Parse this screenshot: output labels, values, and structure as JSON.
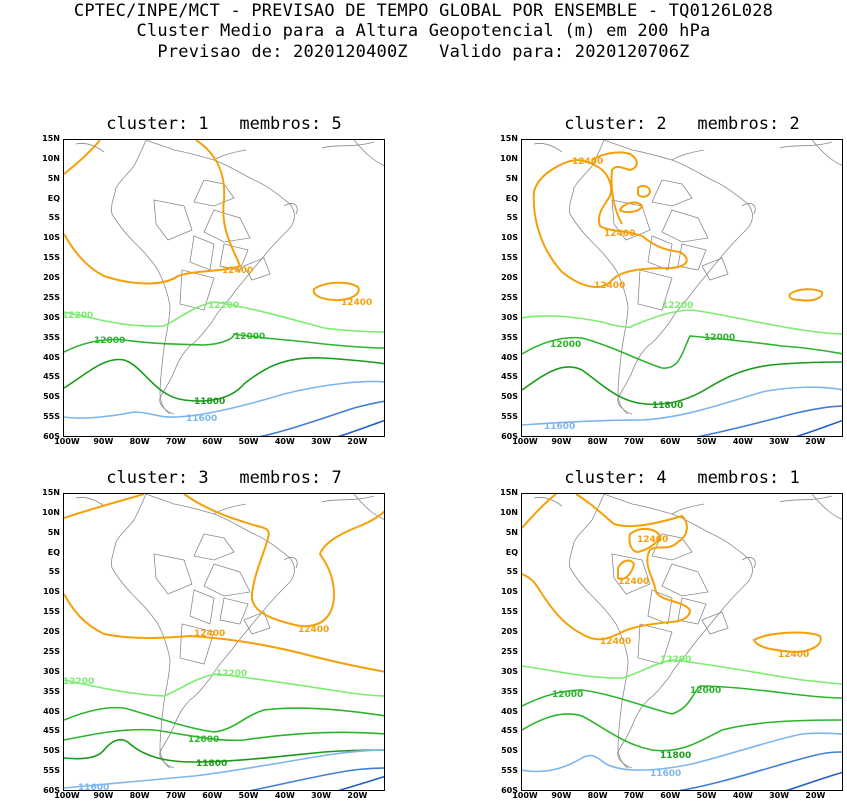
{
  "header": {
    "line1": "CPTEC/INPE/MCT - PREVISAO DE TEMPO GLOBAL POR ENSEMBLE - TQ0126L028",
    "line2": "Cluster Medio para a Altura Geopotencial (m) em 200 hPa",
    "line3": "Previsao de: 2020120400Z   Valido para: 2020120706Z"
  },
  "axes": {
    "lat_labels": [
      "15N",
      "10N",
      "5N",
      "EQ",
      "5S",
      "10S",
      "15S",
      "20S",
      "25S",
      "30S",
      "35S",
      "40S",
      "45S",
      "50S",
      "55S",
      "60S"
    ],
    "lon_labels": [
      "100W",
      "90W",
      "80W",
      "70W",
      "60W",
      "50W",
      "40W",
      "30W",
      "20W"
    ]
  },
  "colors": {
    "c12400": "#f5a00a",
    "c12200": "#7bed6e",
    "c12000": "#2cb52c",
    "c11800": "#1a9a1a",
    "c11600": "#7db6ee",
    "c11400": "#3f7fd9",
    "c11200": "#1f5ec4",
    "coast": "#8a8a8a"
  },
  "panels": [
    {
      "title": "cluster: 1   membros: 5",
      "labels": {
        "a": "12400",
        "b": "12400",
        "c": "12200",
        "d": "12200",
        "e": "12000",
        "f": "12000",
        "g": "11800",
        "h": "11600"
      }
    },
    {
      "title": "cluster: 2   membros: 2",
      "labels": {
        "a": "12400",
        "b": "12400",
        "c": "12400",
        "d": "12200",
        "e": "12000",
        "f": "12000",
        "g": "11800",
        "h": "11600"
      }
    },
    {
      "title": "cluster: 3   membros: 7",
      "labels": {
        "a": "12400",
        "b": "12400",
        "c": "12200",
        "d": "12200",
        "e": "12000",
        "f": "11800",
        "g": "11600"
      }
    },
    {
      "title": "cluster: 4   membros: 1",
      "labels": {
        "a": "12400",
        "b": "12400",
        "c": "12400",
        "d": "12400",
        "e": "12200",
        "f": "12000",
        "g": "12000",
        "h": "11800",
        "i": "11600"
      }
    }
  ]
}
